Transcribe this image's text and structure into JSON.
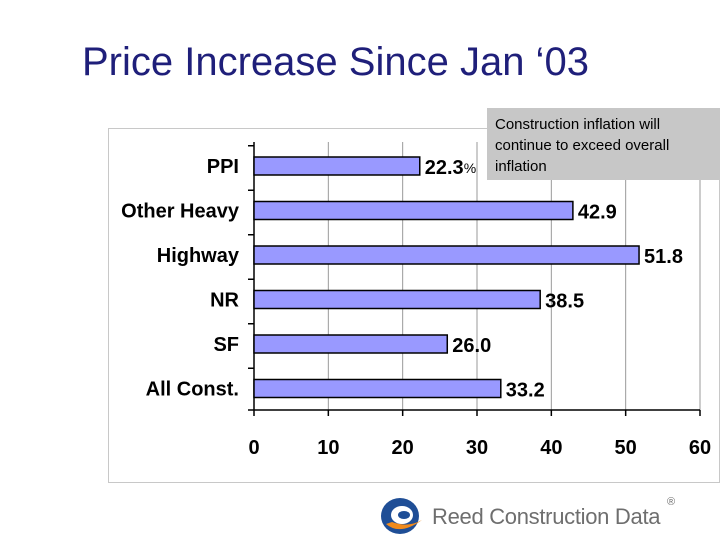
{
  "title": "Price Increase Since Jan ‘03",
  "annotation": "Construction inflation will continue to exceed overall inflation",
  "logo_text": "Reed Construction Data",
  "logo_mark": "®",
  "chart_data": {
    "type": "bar",
    "orientation": "horizontal",
    "categories": [
      "PPI",
      "Other Heavy",
      "Highway",
      "NR",
      "SF",
      "All Const."
    ],
    "values": [
      22.3,
      42.9,
      51.8,
      38.5,
      26.0,
      33.2
    ],
    "value_labels": [
      "22.3",
      "42.9",
      "51.8",
      "38.5",
      "26.0",
      "33.2"
    ],
    "unit_label": "%",
    "xlim": [
      0,
      60
    ],
    "xticks": [
      "0",
      "10",
      "20",
      "30",
      "40",
      "50",
      "60"
    ],
    "grid": true,
    "bar_color": "#9999ff"
  }
}
